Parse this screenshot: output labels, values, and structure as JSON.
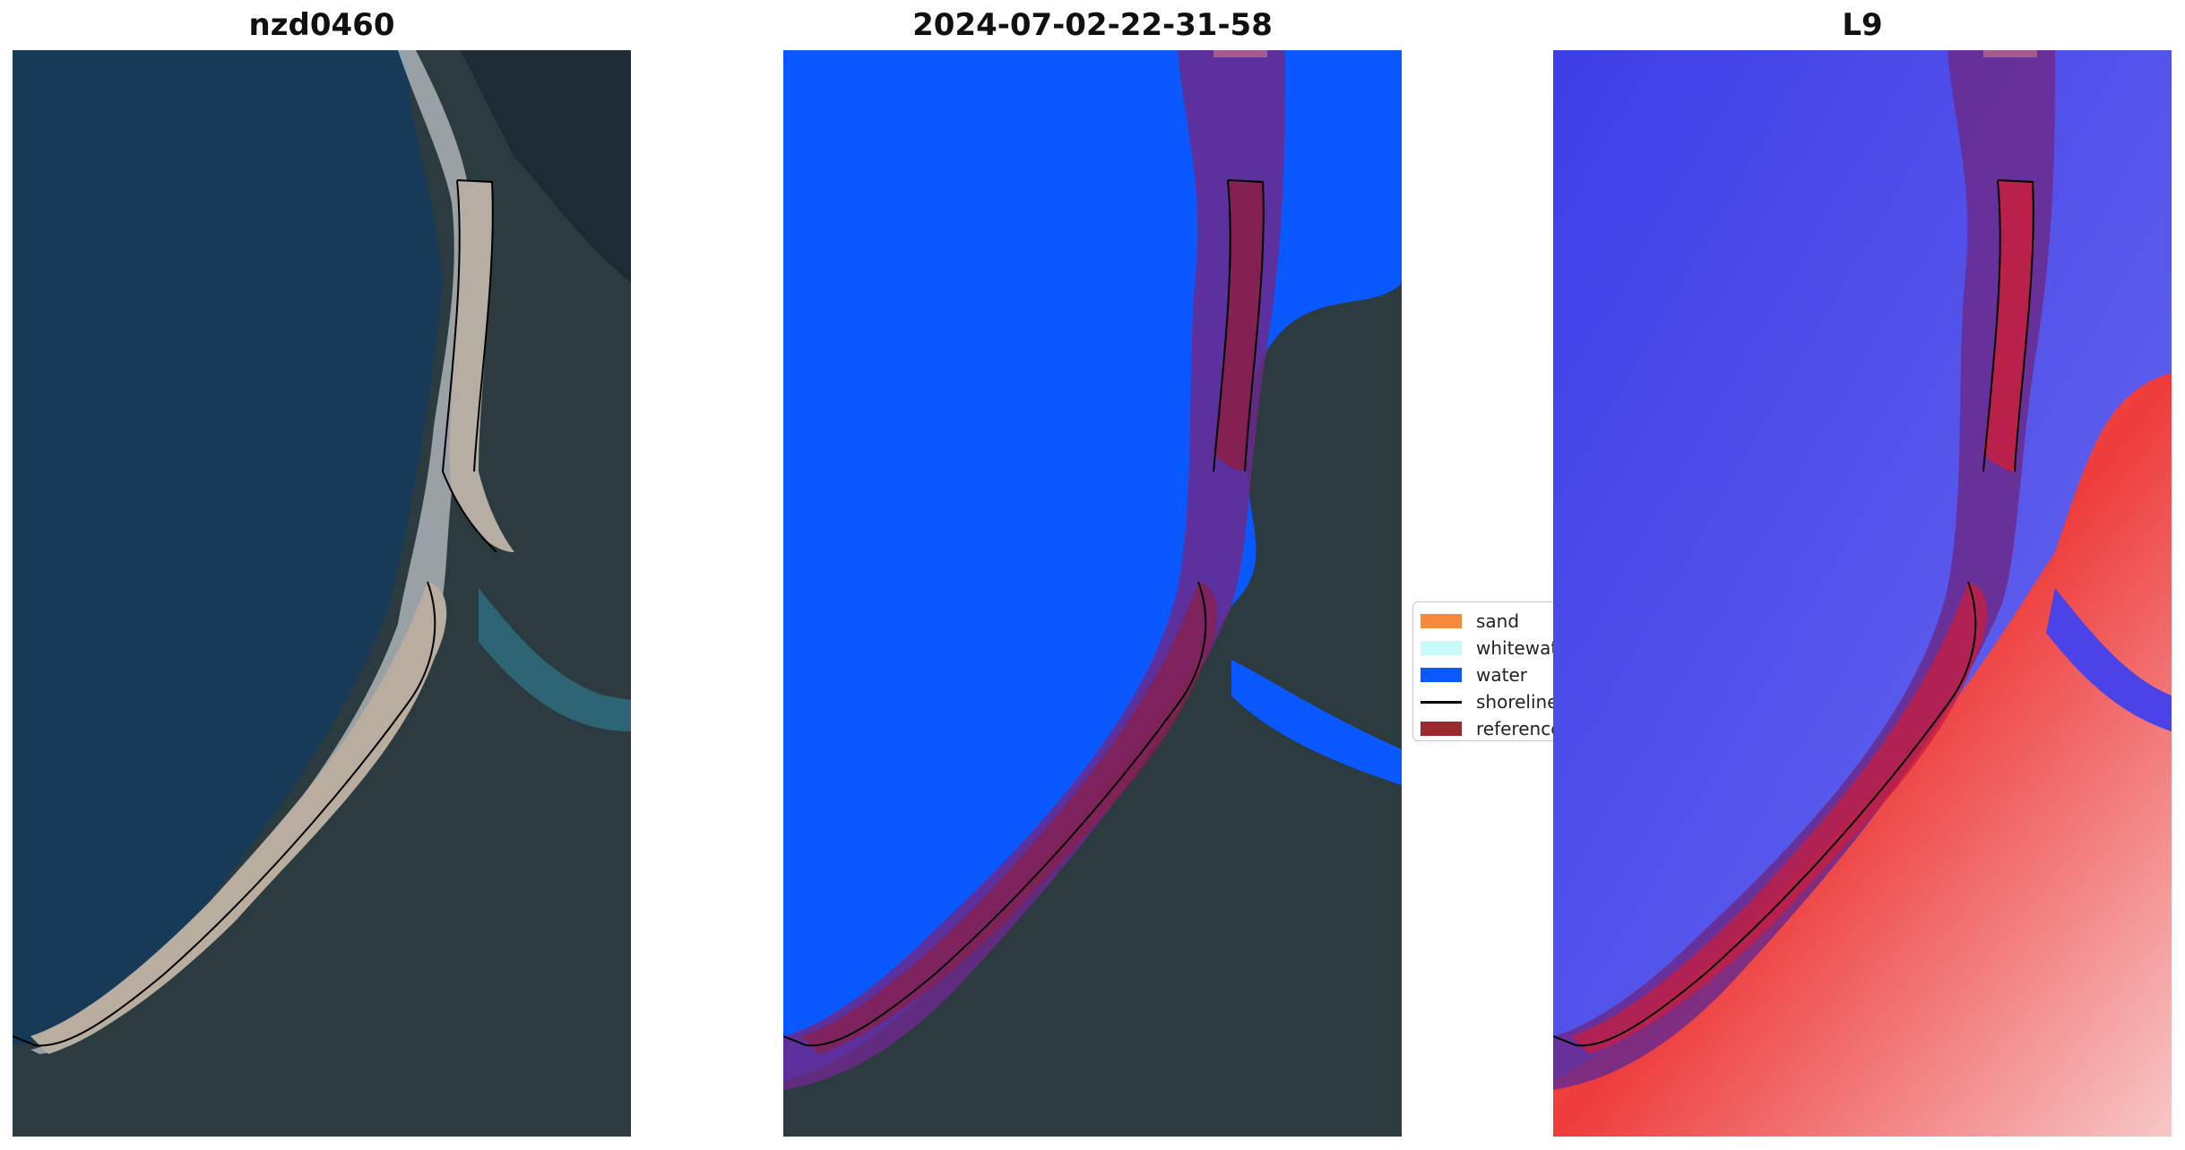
{
  "panels": [
    {
      "title": "nzd0460",
      "layer": "rgb-image"
    },
    {
      "title": "2024-07-02-22-31-58",
      "layer": "classification"
    },
    {
      "title": "L9",
      "layer": "index-colormap"
    }
  ],
  "legend": {
    "items": [
      {
        "label": "sand",
        "color": "#f58a3c"
      },
      {
        "label": "whitewater",
        "color": "#c8fafa"
      },
      {
        "label": "water",
        "color": "#0a58ff"
      },
      {
        "label": "shoreline",
        "color": "#000000",
        "kind": "line"
      },
      {
        "label": "reference shoreline buffer",
        "color": "#9b2a2e"
      }
    ]
  },
  "colors": {
    "ocean": "#153a56",
    "land": "#2b3a3e",
    "sand": "#b9ada0",
    "water_class": "#0a58ff",
    "buffer": "#7a1f6a",
    "index_low": "#4b43e8",
    "index_high": "#ee3b3b"
  }
}
